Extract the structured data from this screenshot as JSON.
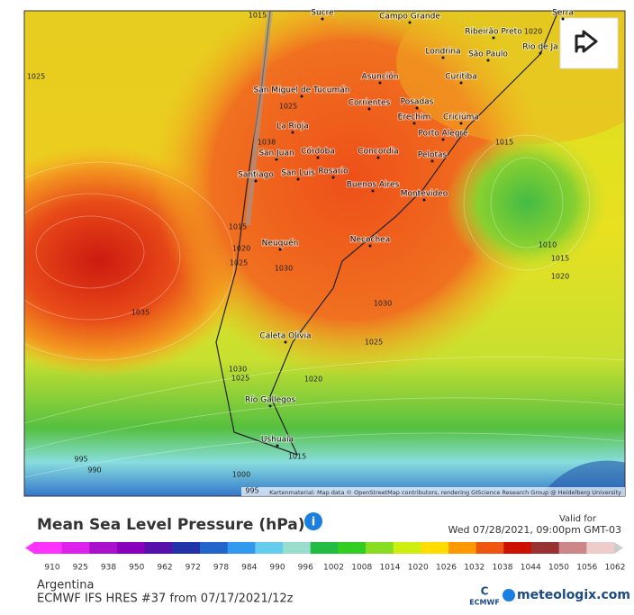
{
  "map": {
    "cities": [
      "Sucre",
      "Campo Grande",
      "Serra",
      "Ribeirão Preto",
      "São Paulo",
      "Rio de Ja",
      "Londrina",
      "Curitiba",
      "Asunción",
      "San Miguel de Tucumán",
      "Corrientes",
      "Posadas",
      "Erechim",
      "Criciúma",
      "La Rioja",
      "Porto Alegre",
      "Córdoba",
      "Concordia",
      "San Juan",
      "Pelotas",
      "Santiago",
      "San Luis",
      "Rosario",
      "Buenos Aires",
      "Montevideo",
      "Neuquén",
      "Necochea",
      "Caleta Olivia",
      "Río Gallegos",
      "Ushuaia"
    ],
    "isobars": [
      "1015",
      "1020",
      "1025",
      "1025",
      "1038",
      "1015",
      "1015",
      "1020",
      "1025",
      "1010",
      "1015",
      "1030",
      "1020",
      "1035",
      "1030",
      "1025",
      "1030",
      "1025",
      "1020",
      "1015",
      "995",
      "990",
      "1000",
      "995"
    ],
    "attribution": "Kartenmaterial: Map data © OpenStreetMap contributors, rendering GIScience Research Group @ Heidelberg University"
  },
  "legend": {
    "title": "Mean Sea Level Pressure (hPa)",
    "valid_label": "Valid for",
    "valid_time": "Wed 07/28/2021, 09:00pm GMT-03",
    "labels": [
      "910",
      "925",
      "938",
      "950",
      "962",
      "972",
      "978",
      "984",
      "990",
      "996",
      "1002",
      "1008",
      "1014",
      "1020",
      "1026",
      "1032",
      "1038",
      "1044",
      "1050",
      "1056",
      "1062"
    ],
    "colors": [
      "#ff33ff",
      "#dd22ee",
      "#aa11cc",
      "#8800bb",
      "#5511aa",
      "#2233aa",
      "#2266cc",
      "#3399ee",
      "#66ccee",
      "#99ddcc",
      "#22bb44",
      "#33cc22",
      "#88dd22",
      "#ccee11",
      "#ffdd00",
      "#ff9900",
      "#ee5511",
      "#cc1100",
      "#993333",
      "#cc8888",
      "#eecccc"
    ]
  },
  "footer": {
    "region": "Argentina",
    "model": "ECMWF IFS HRES #37 from 07/17/2021/12z",
    "ecmwf": "ECMWF",
    "brand": "meteologix.com"
  }
}
